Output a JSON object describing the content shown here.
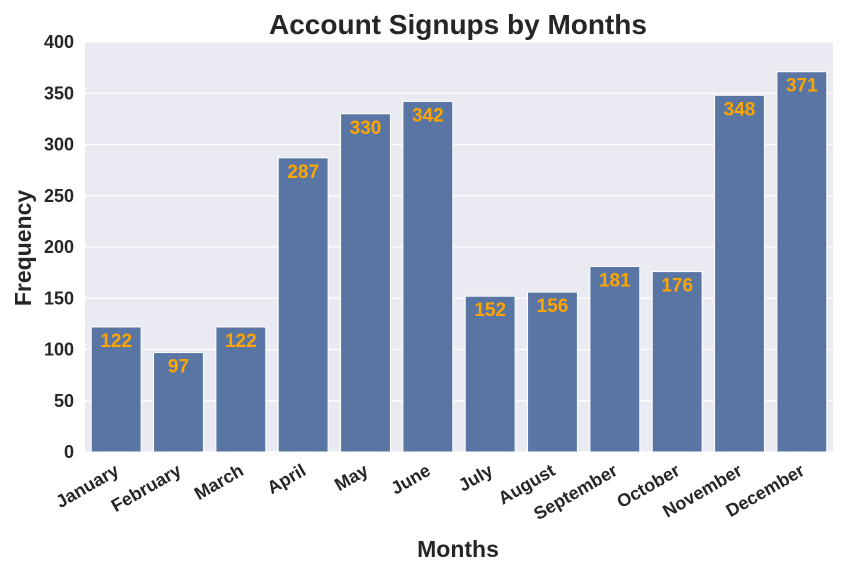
{
  "chart_data": {
    "type": "bar",
    "title": "Account Signups by Months",
    "xlabel": "Months",
    "ylabel": "Frequency",
    "categories": [
      "January",
      "February",
      "March",
      "April",
      "May",
      "June",
      "July",
      "August",
      "September",
      "October",
      "November",
      "December"
    ],
    "values": [
      122,
      97,
      122,
      287,
      330,
      342,
      152,
      156,
      181,
      176,
      348,
      371
    ],
    "ylim": [
      0,
      400
    ],
    "yticks": [
      "0",
      "50",
      "100",
      "150",
      "200",
      "250",
      "300",
      "350",
      "400"
    ],
    "grid": true,
    "bar_color": "#5875a4",
    "label_color": "#ffa500",
    "plot_background": "#eaeaf2",
    "grid_color": "#ffffff"
  }
}
